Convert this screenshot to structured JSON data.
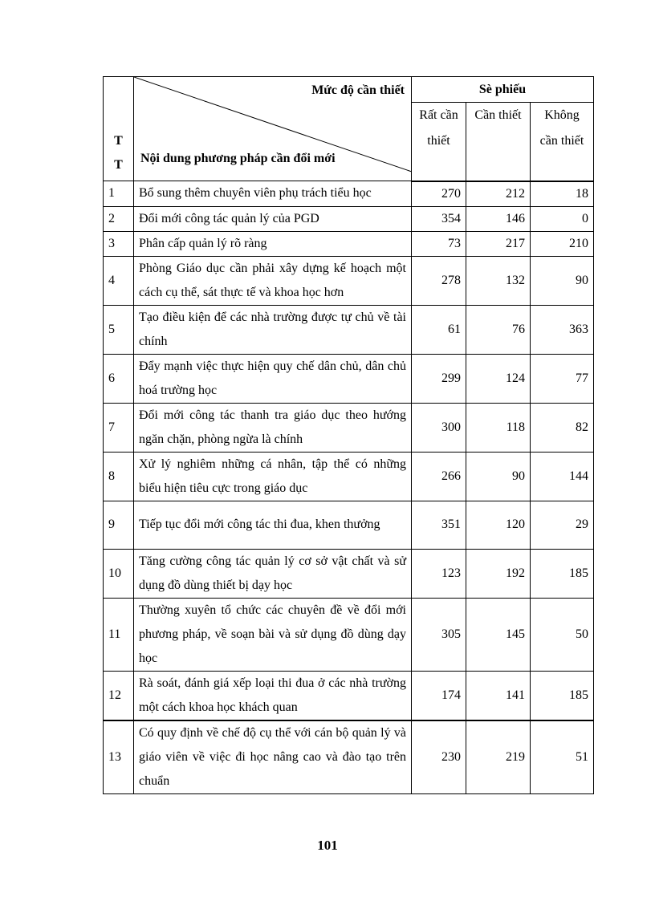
{
  "table": {
    "header": {
      "tt": "T T",
      "diag_top": "Mức độ cần thiết",
      "diag_bottom": "Nội dung phương pháp cần đổi mới",
      "group": "Sè phiếu",
      "cols": [
        "Rất cần thiết",
        "Cần thiết",
        "Không cần thiết"
      ]
    },
    "rows": [
      {
        "tt": "1",
        "content": "Bổ sung thêm chuyên viên phụ trách tiểu học",
        "v1": "270",
        "v2": "212",
        "v3": "18"
      },
      {
        "tt": "2",
        "content": "Đổi mới công tác quản lý của PGD",
        "v1": "354",
        "v2": "146",
        "v3": "0"
      },
      {
        "tt": "3",
        "content": "Phân cấp quản lý rõ ràng",
        "v1": "73",
        "v2": "217",
        "v3": "210"
      },
      {
        "tt": "4",
        "content": "Phòng Giáo dục cần phải xây dựng kế hoạch một cách cụ thể, sát thực tế và khoa học hơn",
        "v1": "278",
        "v2": "132",
        "v3": "90"
      },
      {
        "tt": "5",
        "content": "Tạo điều kiện để các nhà trường được tự chủ về tài chính",
        "v1": "61",
        "v2": "76",
        "v3": "363"
      },
      {
        "tt": "6",
        "content": "Đẩy mạnh việc thực hiện quy chế dân chủ, dân chủ hoá trường học",
        "v1": "299",
        "v2": "124",
        "v3": "77"
      },
      {
        "tt": "7",
        "content": "Đổi mới công tác thanh tra giáo dục theo hướng ngăn chặn, phòng ngừa là chính",
        "v1": "300",
        "v2": "118",
        "v3": "82"
      },
      {
        "tt": "8",
        "content": "Xử lý nghiêm những cá nhân, tập thể có những biểu hiện tiêu cực trong giáo dục",
        "v1": "266",
        "v2": "90",
        "v3": "144"
      },
      {
        "tt": "9",
        "content": "Tiếp tục đổi mới công tác thi đua, khen thưởng",
        "v1": "351",
        "v2": "120",
        "v3": "29"
      },
      {
        "tt": "10",
        "content": "Tăng cường công tác quản lý cơ sở vật chất và sử dụng đồ dùng thiết bị dạy học",
        "v1": "123",
        "v2": "192",
        "v3": "185"
      },
      {
        "tt": "11",
        "content": "Thường xuyên tổ chức các chuyên đề về đổi mới phương pháp, về soạn bài và sử dụng đồ dùng dạy học",
        "v1": "305",
        "v2": "145",
        "v3": "50"
      },
      {
        "tt": "12",
        "content": "Rà soát, đánh giá xếp loại thi đua ở các nhà trường một cách khoa học khách quan",
        "v1": "174",
        "v2": "141",
        "v3": "185"
      },
      {
        "tt": "13",
        "content": "Có quy định về chế độ cụ thể với cán bộ quản lý và giáo viên về việc đi học nâng cao và đào tạo trên chuẩn",
        "v1": "230",
        "v2": "219",
        "v3": "51"
      }
    ]
  },
  "page_number": "101"
}
